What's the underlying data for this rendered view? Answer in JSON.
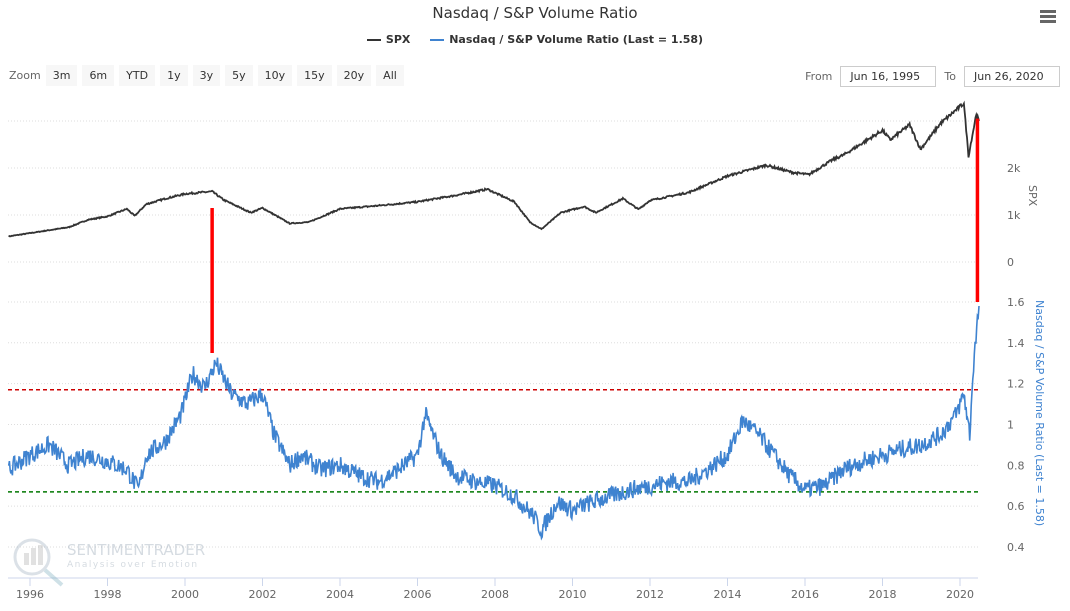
{
  "title": "Nasdaq / S&P Volume Ratio",
  "legend": [
    {
      "label": "SPX",
      "color": "#333333"
    },
    {
      "label": "Nasdaq / S&P Volume Ratio (Last = 1.58)",
      "color": "#3f83d0"
    }
  ],
  "zoom": {
    "label": "Zoom",
    "buttons": [
      "3m",
      "6m",
      "YTD",
      "1y",
      "3y",
      "5y",
      "10y",
      "15y",
      "20y",
      "All"
    ]
  },
  "range": {
    "from_label": "From",
    "from": "Jun 16, 1995",
    "to_label": "To",
    "to": "Jun 26, 2020"
  },
  "watermark": {
    "name": "SENTIMENTRADER",
    "tagline": "Analysis over Emotion"
  },
  "chart_data": {
    "type": "line",
    "title": "Nasdaq / S&P Volume Ratio",
    "x_ticks": [
      "1996",
      "1998",
      "2000",
      "2002",
      "2004",
      "2006",
      "2008",
      "2010",
      "2012",
      "2014",
      "2016",
      "2018",
      "2020"
    ],
    "xlim": [
      1995.45,
      2020.49
    ],
    "grid": true,
    "legend_position": "top",
    "axes": [
      {
        "id": "spx",
        "label": "SPX",
        "ticks": [
          {
            "v": 0,
            "t": "0"
          },
          {
            "v": 1000,
            "t": "1k"
          },
          {
            "v": 2000,
            "t": "2k"
          }
        ],
        "ylim": [
          0,
          3000
        ]
      },
      {
        "id": "ratio",
        "label": "Nasdaq / S&P Volume Ratio (Last = 1.58)",
        "ticks": [
          {
            "v": 0.4,
            "t": "0.4"
          },
          {
            "v": 0.6,
            "t": "0.6"
          },
          {
            "v": 0.8,
            "t": "0.8"
          },
          {
            "v": 1,
            "t": "1"
          },
          {
            "v": 1.2,
            "t": "1.2"
          },
          {
            "v": 1.4,
            "t": "1.4"
          },
          {
            "v": 1.6,
            "t": "1.6"
          }
        ],
        "ylim": [
          0.4,
          1.6
        ]
      }
    ],
    "series": [
      {
        "name": "SPX",
        "axis": "spx",
        "color": "#333333",
        "points": [
          [
            1995.45,
            545
          ],
          [
            1996,
            615
          ],
          [
            1997,
            740
          ],
          [
            1997.5,
            900
          ],
          [
            1998,
            970
          ],
          [
            1998.5,
            1130
          ],
          [
            1998.7,
            980
          ],
          [
            1999,
            1230
          ],
          [
            1999.5,
            1350
          ],
          [
            2000,
            1450
          ],
          [
            2000.7,
            1500
          ],
          [
            2001,
            1320
          ],
          [
            2001.7,
            1050
          ],
          [
            2002,
            1150
          ],
          [
            2002.7,
            820
          ],
          [
            2003.2,
            850
          ],
          [
            2004,
            1130
          ],
          [
            2005,
            1200
          ],
          [
            2006,
            1280
          ],
          [
            2007,
            1420
          ],
          [
            2007.8,
            1550
          ],
          [
            2008.5,
            1280
          ],
          [
            2008.9,
            850
          ],
          [
            2009.2,
            700
          ],
          [
            2009.7,
            1050
          ],
          [
            2010.3,
            1180
          ],
          [
            2010.6,
            1050
          ],
          [
            2011.3,
            1350
          ],
          [
            2011.7,
            1120
          ],
          [
            2012,
            1310
          ],
          [
            2013,
            1480
          ],
          [
            2014,
            1830
          ],
          [
            2015,
            2060
          ],
          [
            2015.7,
            1900
          ],
          [
            2016.1,
            1860
          ],
          [
            2016.7,
            2170
          ],
          [
            2017,
            2280
          ],
          [
            2018,
            2800
          ],
          [
            2018.2,
            2600
          ],
          [
            2018.7,
            2920
          ],
          [
            2018.98,
            2400
          ],
          [
            2019.5,
            2950
          ],
          [
            2020.1,
            3380
          ],
          [
            2020.22,
            2250
          ],
          [
            2020.42,
            3150
          ],
          [
            2020.49,
            3000
          ]
        ]
      },
      {
        "name": "Nasdaq / S&P Volume Ratio (Last = 1.58)",
        "axis": "ratio",
        "color": "#3f83d0",
        "points": [
          [
            1995.45,
            0.78
          ],
          [
            1996,
            0.85
          ],
          [
            1996.5,
            0.9
          ],
          [
            1997,
            0.8
          ],
          [
            1997.5,
            0.85
          ],
          [
            1998,
            0.82
          ],
          [
            1998.5,
            0.78
          ],
          [
            1998.8,
            0.68
          ],
          [
            1999,
            0.85
          ],
          [
            1999.5,
            0.92
          ],
          [
            1999.9,
            1.05
          ],
          [
            2000.2,
            1.25
          ],
          [
            2000.5,
            1.18
          ],
          [
            2000.8,
            1.3
          ],
          [
            2001.2,
            1.15
          ],
          [
            2001.6,
            1.1
          ],
          [
            2002,
            1.15
          ],
          [
            2002.3,
            0.95
          ],
          [
            2002.7,
            0.8
          ],
          [
            2003,
            0.85
          ],
          [
            2003.5,
            0.78
          ],
          [
            2004,
            0.8
          ],
          [
            2004.5,
            0.75
          ],
          [
            2005,
            0.72
          ],
          [
            2005.5,
            0.78
          ],
          [
            2006,
            0.85
          ],
          [
            2006.2,
            1.05
          ],
          [
            2006.6,
            0.85
          ],
          [
            2007,
            0.75
          ],
          [
            2007.5,
            0.72
          ],
          [
            2008,
            0.7
          ],
          [
            2008.5,
            0.65
          ],
          [
            2009,
            0.55
          ],
          [
            2009.2,
            0.48
          ],
          [
            2009.6,
            0.62
          ],
          [
            2010,
            0.58
          ],
          [
            2010.5,
            0.62
          ],
          [
            2011,
            0.65
          ],
          [
            2011.5,
            0.68
          ],
          [
            2012,
            0.7
          ],
          [
            2012.5,
            0.72
          ],
          [
            2013,
            0.72
          ],
          [
            2013.5,
            0.78
          ],
          [
            2014,
            0.85
          ],
          [
            2014.4,
            1.02
          ],
          [
            2014.8,
            0.95
          ],
          [
            2015.2,
            0.85
          ],
          [
            2015.6,
            0.75
          ],
          [
            2016,
            0.68
          ],
          [
            2016.5,
            0.7
          ],
          [
            2017,
            0.78
          ],
          [
            2017.5,
            0.82
          ],
          [
            2018,
            0.85
          ],
          [
            2018.5,
            0.88
          ],
          [
            2019,
            0.9
          ],
          [
            2019.5,
            0.95
          ],
          [
            2019.9,
            1.05
          ],
          [
            2020.1,
            1.15
          ],
          [
            2020.25,
            0.95
          ],
          [
            2020.35,
            1.3
          ],
          [
            2020.49,
            1.58
          ]
        ]
      }
    ],
    "reference_lines": [
      {
        "axis": "ratio",
        "value": 1.17,
        "color": "#cc0000",
        "style": "dashed"
      },
      {
        "axis": "ratio",
        "value": 0.67,
        "color": "#007700",
        "style": "dashed"
      }
    ],
    "annotations": [
      {
        "type": "vertical-line",
        "x": 2000.7,
        "color": "#ff0000",
        "from": {
          "axis": "spx",
          "value": 1150
        },
        "to": {
          "axis": "ratio",
          "value": 1.35
        }
      },
      {
        "type": "vertical-line",
        "x": 2020.45,
        "color": "#ff0000",
        "from": {
          "axis": "spx",
          "value": 3050
        },
        "to": {
          "axis": "ratio",
          "value": 1.6
        }
      }
    ]
  }
}
